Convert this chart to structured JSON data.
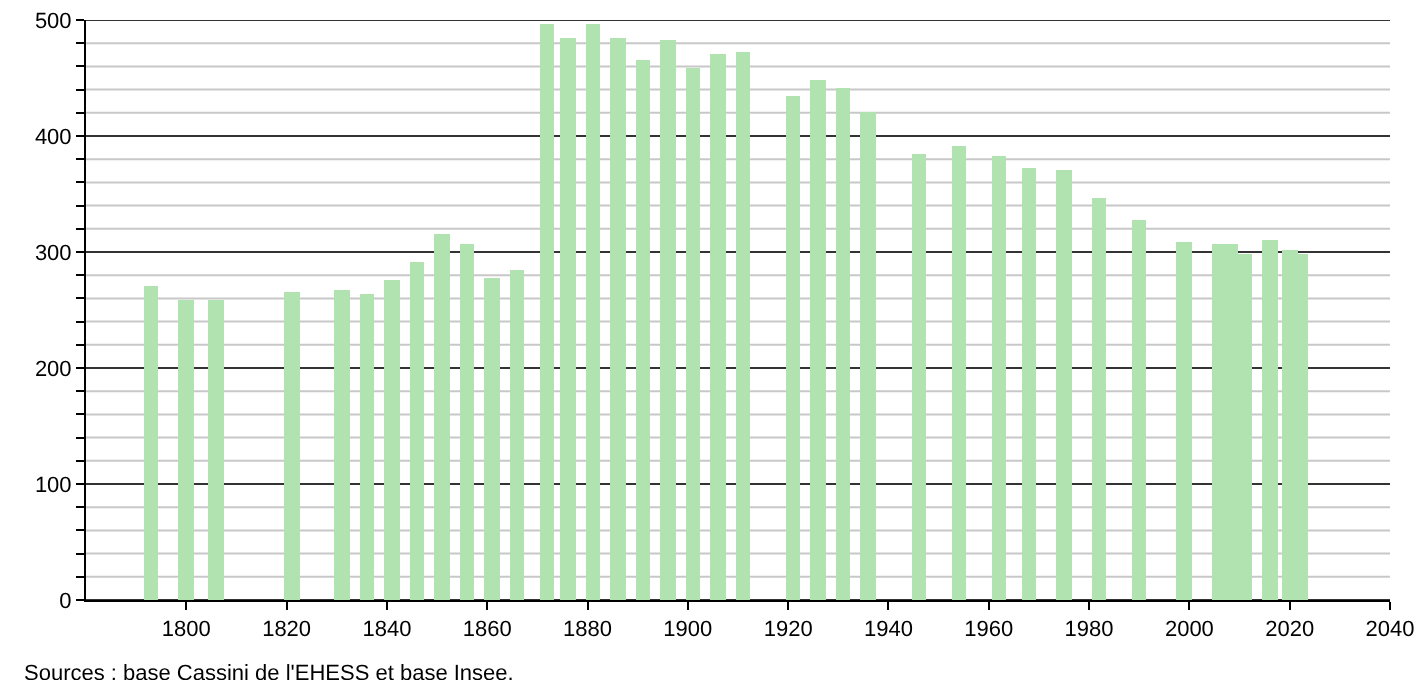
{
  "chart_data": {
    "type": "bar",
    "x": [
      1793,
      1800,
      1806,
      1821,
      1831,
      1836,
      1841,
      1846,
      1851,
      1856,
      1861,
      1866,
      1872,
      1876,
      1881,
      1886,
      1891,
      1896,
      1901,
      1906,
      1911,
      1921,
      1926,
      1931,
      1936,
      1946,
      1954,
      1962,
      1968,
      1975,
      1982,
      1990,
      1999,
      2006,
      2008,
      2011,
      2016,
      2020,
      2022
    ],
    "values": [
      271,
      258,
      258,
      265,
      268,
      263,
      276,
      291,
      316,
      307,
      277,
      284,
      497,
      485,
      497,
      485,
      466,
      482,
      458,
      470,
      473,
      435,
      449,
      442,
      420,
      385,
      392,
      383,
      372,
      370,
      346,
      327,
      309,
      307,
      307,
      298,
      310,
      302,
      298
    ],
    "color": "#b0e3b0",
    "xlim": [
      1780,
      2040
    ],
    "xticks": [
      1800,
      1820,
      1840,
      1860,
      1880,
      1900,
      1920,
      1940,
      1960,
      1980,
      2000,
      2020,
      2040
    ],
    "ylim": [
      0,
      500
    ],
    "yticks": [
      0,
      {
        "value": 20,
        "label": null
      },
      {
        "value": 40,
        "label": null
      },
      {
        "value": 60,
        "label": null
      },
      {
        "value": 80,
        "label": null
      },
      100,
      {
        "value": 120,
        "label": null
      },
      {
        "value": 140,
        "label": null
      },
      {
        "value": 160,
        "label": null
      },
      {
        "value": 180,
        "label": null
      },
      200,
      {
        "value": 220,
        "label": null
      },
      {
        "value": 240,
        "label": null
      },
      {
        "value": 260,
        "label": null
      },
      {
        "value": 280,
        "label": null
      },
      300,
      {
        "value": 320,
        "label": null
      },
      {
        "value": 340,
        "label": null
      },
      {
        "value": 360,
        "label": null
      },
      {
        "value": 380,
        "label": null
      },
      400,
      {
        "value": 420,
        "label": null
      },
      {
        "value": 440,
        "label": null
      },
      {
        "value": 460,
        "label": null
      },
      {
        "value": 480,
        "label": null
      },
      500
    ],
    "grid": "y",
    "annotations": [
      "Sources : base Cassini de l'EHESS et base Insee."
    ]
  }
}
